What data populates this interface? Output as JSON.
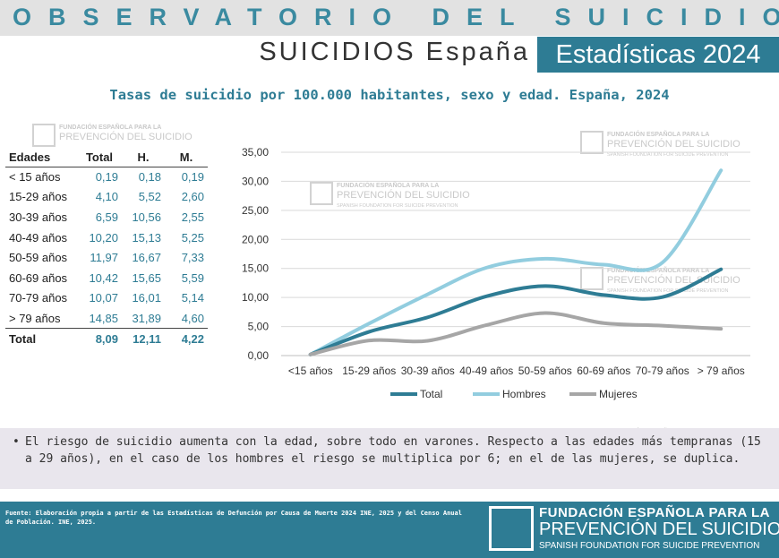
{
  "header": {
    "banner": "OBSERVATORIO DEL SUICIDIO",
    "subtitle_left": "SUICIDIOS España",
    "subtitle_right": "Estadísticas 2024"
  },
  "watermark": {
    "line1": "FUNDACIÓN ESPAÑOLA PARA LA",
    "line2": "PREVENCIÓN DEL SUICIDIO",
    "line3": "SPANISH FOUNDATION FOR SUICIDE PREVENTION"
  },
  "table": {
    "headers": [
      "Edades",
      "Total",
      "H.",
      "M."
    ],
    "rows": [
      [
        "< 15 años",
        "0,19",
        "0,18",
        "0,19"
      ],
      [
        "15-29 años",
        "4,10",
        "5,52",
        "2,60"
      ],
      [
        "30-39 años",
        "6,59",
        "10,56",
        "2,55"
      ],
      [
        "40-49 años",
        "10,20",
        "15,13",
        "5,25"
      ],
      [
        "50-59 años",
        "11,97",
        "16,67",
        "7,33"
      ],
      [
        "60-69 años",
        "10,42",
        "15,65",
        "5,59"
      ],
      [
        "70-79 años",
        "10,07",
        "16,01",
        "5,14"
      ],
      [
        "> 79 años",
        "14,85",
        "31,89",
        "4,60"
      ]
    ],
    "total": [
      "Total",
      "8,09",
      "12,11",
      "4,22"
    ]
  },
  "chart_data": {
    "type": "line",
    "title": "Tasas de suicidio por 100.000 habitantes, sexo y edad. España, 2024",
    "categories": [
      "<15 años",
      "15-29 años",
      "30-39 años",
      "40-49 años",
      "50-59 años",
      "60-69 años",
      "70-79 años",
      "> 79 años"
    ],
    "series": [
      {
        "name": "Total",
        "values": [
          0.19,
          4.1,
          6.59,
          10.2,
          11.97,
          10.42,
          10.07,
          14.85
        ],
        "color": "#2e7c94"
      },
      {
        "name": "Hombres",
        "values": [
          0.18,
          5.52,
          10.56,
          15.13,
          16.67,
          15.65,
          16.01,
          31.89
        ],
        "color": "#92cddf"
      },
      {
        "name": "Mujeres",
        "values": [
          0.19,
          2.6,
          2.55,
          5.25,
          7.33,
          5.59,
          5.14,
          4.6
        ],
        "color": "#a6a6a6"
      }
    ],
    "ylim": [
      0,
      35
    ],
    "yticks": [
      "0,00",
      "5,00",
      "10,00",
      "15,00",
      "20,00",
      "25,00",
      "30,00",
      "35,00"
    ],
    "grid": true,
    "legend": "bottom",
    "smooth": true
  },
  "note": {
    "bullet": "•",
    "text": "El riesgo de suicidio aumenta con la edad, sobre todo en varones. Respecto a las edades más tempranas (15 a 29 años), en el caso de los hombres el riesgo se multiplica por 6; en el de las mujeres, se duplica."
  },
  "footer": {
    "source": "Fuente: Elaboración propia a partir de las Estadísticas de Defunción por Causa de Muerte 2024 INE, 2025 y del Censo Anual de Población. INE, 2025.",
    "logo_line1": "FUNDACIÓN ESPAÑOLA PARA LA",
    "logo_line2": "PREVENCIÓN DEL SUICIDIO",
    "logo_line3": "SPANISH FOUNDATION FOR SUICIDE PREVENTION"
  }
}
